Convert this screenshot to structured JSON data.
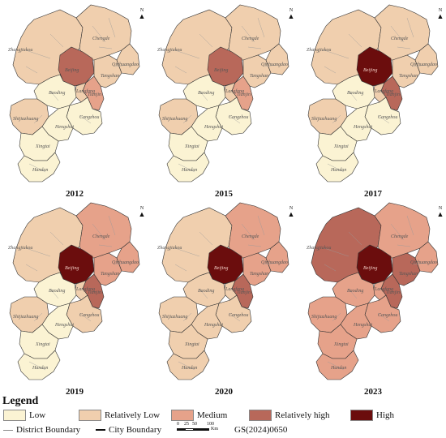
{
  "colors": {
    "low": "#fbf3d3",
    "relatively_low": "#f0cfae",
    "medium": "#e6a28a",
    "relatively_high": "#b8685a",
    "high": "#6b0d0d"
  },
  "north_label": "N",
  "panels": [
    {
      "year": "2012",
      "classes": {
        "zhangjiakou": "relatively_low",
        "chengde": "relatively_low",
        "beijing": "relatively_high",
        "tianjin": "medium",
        "tangshan": "relatively_low",
        "qinhuangdao": "relatively_low",
        "langfang": "relatively_low",
        "baoding": "low",
        "cangzhou": "low",
        "shijiazhuang": "relatively_low",
        "hengshui": "low",
        "xingtai": "low",
        "handan": "low"
      }
    },
    {
      "year": "2015",
      "classes": {
        "zhangjiakou": "relatively_low",
        "chengde": "relatively_low",
        "beijing": "relatively_high",
        "tianjin": "medium",
        "tangshan": "relatively_low",
        "qinhuangdao": "relatively_low",
        "langfang": "relatively_low",
        "baoding": "low",
        "cangzhou": "low",
        "shijiazhuang": "relatively_low",
        "hengshui": "low",
        "xingtai": "low",
        "handan": "low"
      }
    },
    {
      "year": "2017",
      "classes": {
        "zhangjiakou": "relatively_low",
        "chengde": "relatively_low",
        "beijing": "high",
        "tianjin": "relatively_high",
        "tangshan": "relatively_low",
        "qinhuangdao": "relatively_low",
        "langfang": "relatively_low",
        "baoding": "low",
        "cangzhou": "low",
        "shijiazhuang": "relatively_low",
        "hengshui": "low",
        "xingtai": "low",
        "handan": "low"
      }
    },
    {
      "year": "2019",
      "classes": {
        "zhangjiakou": "relatively_low",
        "chengde": "medium",
        "beijing": "high",
        "tianjin": "relatively_high",
        "tangshan": "medium",
        "qinhuangdao": "medium",
        "langfang": "relatively_low",
        "baoding": "low",
        "cangzhou": "relatively_low",
        "shijiazhuang": "relatively_low",
        "hengshui": "low",
        "xingtai": "low",
        "handan": "low"
      }
    },
    {
      "year": "2020",
      "classes": {
        "zhangjiakou": "relatively_low",
        "chengde": "medium",
        "beijing": "high",
        "tianjin": "relatively_high",
        "tangshan": "medium",
        "qinhuangdao": "medium",
        "langfang": "relatively_low",
        "baoding": "relatively_low",
        "cangzhou": "relatively_low",
        "shijiazhuang": "relatively_low",
        "hengshui": "relatively_low",
        "xingtai": "relatively_low",
        "handan": "relatively_low"
      }
    },
    {
      "year": "2023",
      "classes": {
        "zhangjiakou": "relatively_high",
        "chengde": "medium",
        "beijing": "high",
        "tianjin": "relatively_high",
        "tangshan": "relatively_high",
        "qinhuangdao": "medium",
        "langfang": "medium",
        "baoding": "medium",
        "cangzhou": "medium",
        "shijiazhuang": "medium",
        "hengshui": "medium",
        "xingtai": "medium",
        "handan": "medium"
      }
    }
  ],
  "city_labels": {
    "zhangjiakou": "Zhangjiakou",
    "chengde": "Chengde",
    "beijing": "Beijing",
    "tianjin": "Tianjin",
    "tangshan": "Tangshan",
    "qinhuangdao": "Qinhuangdao",
    "langfang": "Langfang",
    "baoding": "Baoding",
    "cangzhou": "Cangzhou",
    "shijiazhuang": "Shijiazhuang",
    "hengshui": "Hengshui",
    "xingtai": "Xingtai",
    "handan": "Handan"
  },
  "legend": {
    "title": "Legend",
    "items": [
      {
        "key": "low",
        "label": "Low"
      },
      {
        "key": "relatively_low",
        "label": "Relatively Low"
      },
      {
        "key": "medium",
        "label": "Medium"
      },
      {
        "key": "relatively_high",
        "label": "Relatively high"
      },
      {
        "key": "high",
        "label": "High"
      }
    ],
    "district_boundary": "District Boundary",
    "city_boundary": "City Boundary",
    "scale_ticks": [
      "0",
      "25",
      "50",
      "100"
    ],
    "scale_unit": "Km",
    "map_number": "GS(2024)0650"
  }
}
